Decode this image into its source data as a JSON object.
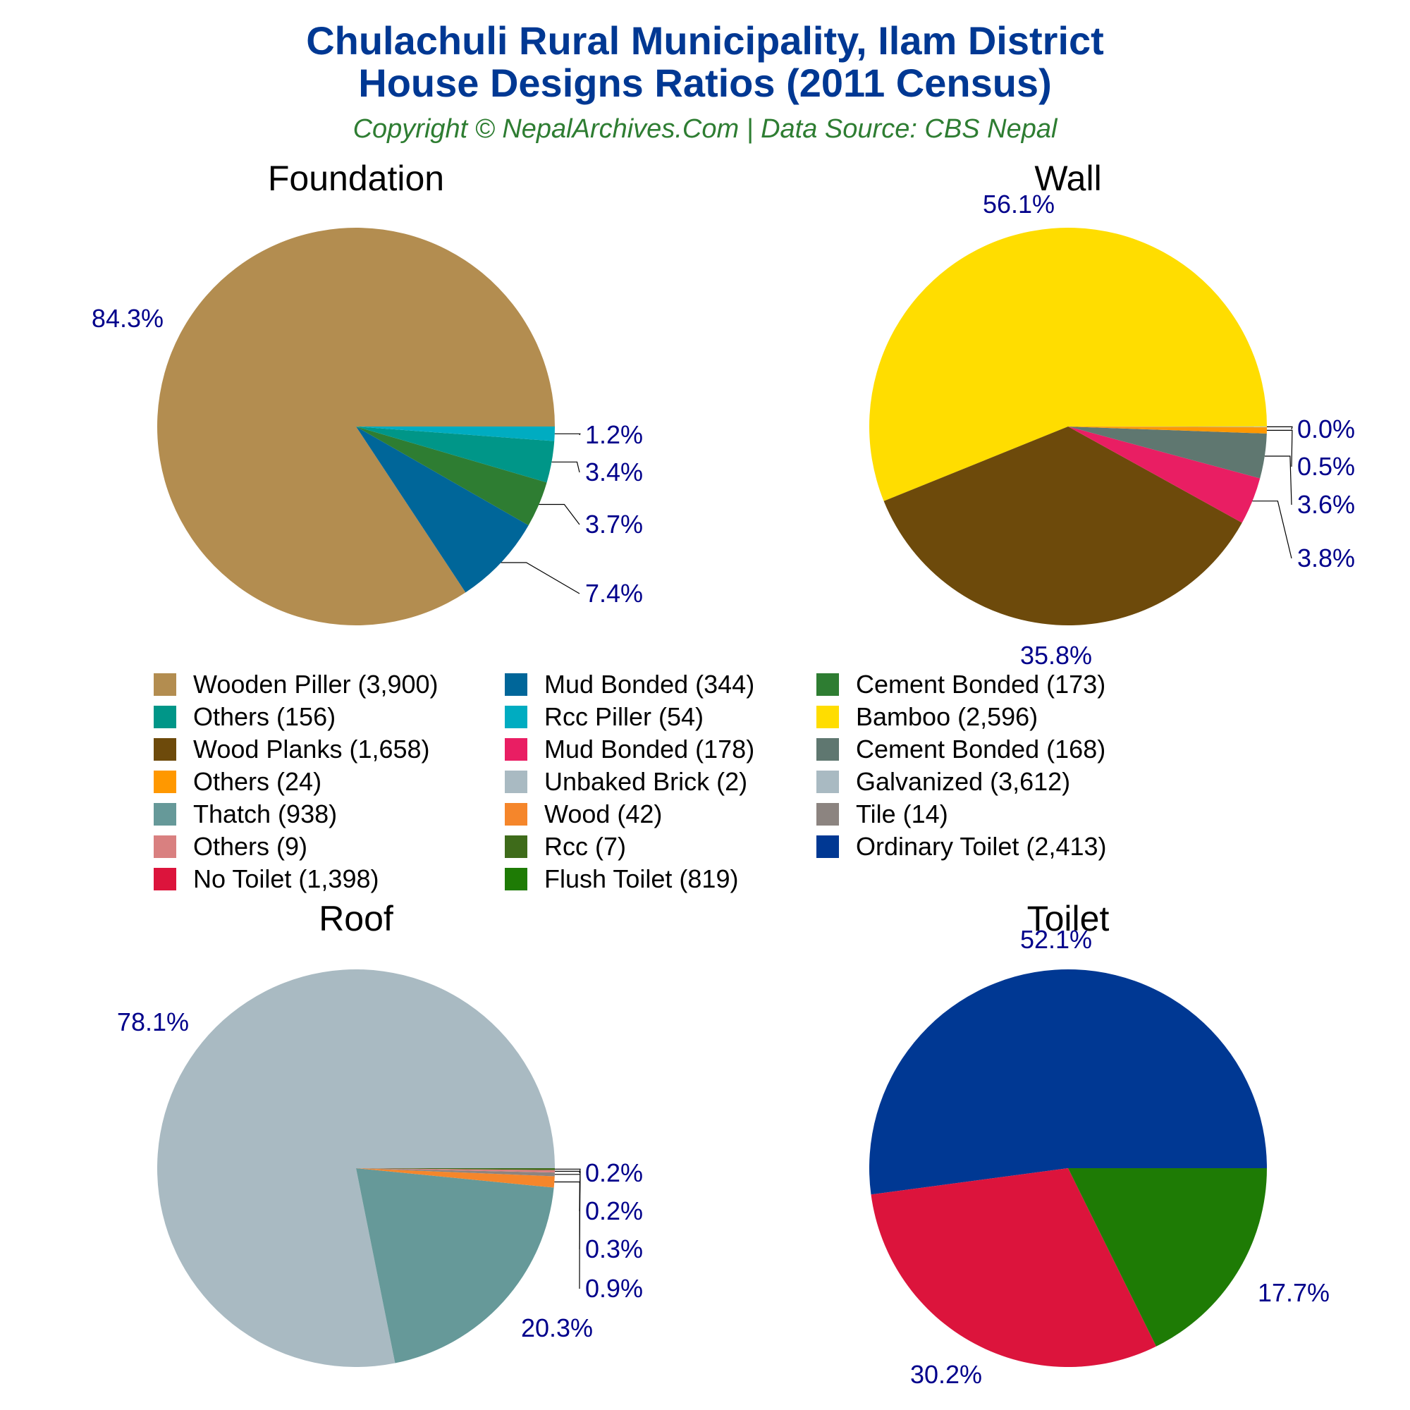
{
  "header": {
    "title_line1": "Chulachuli Rural Municipality, Ilam District",
    "title_line2": "House Designs Ratios (2011 Census)",
    "subtitle": "Copyright © NepalArchives.Com | Data Source: CBS Nepal"
  },
  "chart_data": [
    {
      "type": "pie",
      "title": "Foundation",
      "slices": [
        {
          "label": "Wooden Piller",
          "value": 3900,
          "pct_label": "84.3%",
          "color": "#b38d50"
        },
        {
          "label": "Mud Bonded",
          "value": 344,
          "pct_label": "7.4%",
          "color": "#006699"
        },
        {
          "label": "Cement Bonded",
          "value": 173,
          "pct_label": "3.7%",
          "color": "#2e7d32"
        },
        {
          "label": "Others",
          "value": 156,
          "pct_label": "3.4%",
          "color": "#009688"
        },
        {
          "label": "Rcc Piller",
          "value": 54,
          "pct_label": "1.2%",
          "color": "#00acc1"
        }
      ]
    },
    {
      "type": "pie",
      "title": "Wall",
      "slices": [
        {
          "label": "Bamboo",
          "value": 2596,
          "pct_label": "56.1%",
          "color": "#ffdd00"
        },
        {
          "label": "Wood Planks",
          "value": 1658,
          "pct_label": "35.8%",
          "color": "#6d4a0b"
        },
        {
          "label": "Mud Bonded",
          "value": 178,
          "pct_label": "3.8%",
          "color": "#e91e63"
        },
        {
          "label": "Cement Bonded",
          "value": 168,
          "pct_label": "3.6%",
          "color": "#5f7770"
        },
        {
          "label": "Others",
          "value": 24,
          "pct_label": "0.5%",
          "color": "#ff9800"
        },
        {
          "label": "Unbaked Brick",
          "value": 2,
          "pct_label": "0.0%",
          "color": "#a9bac2"
        }
      ]
    },
    {
      "type": "pie",
      "title": "Roof",
      "slices": [
        {
          "label": "Galvanized",
          "value": 3612,
          "pct_label": "78.1%",
          "color": "#a9bac2"
        },
        {
          "label": "Thatch",
          "value": 938,
          "pct_label": "20.3%",
          "color": "#669999"
        },
        {
          "label": "Wood",
          "value": 42,
          "pct_label": "0.9%",
          "color": "#f5862b"
        },
        {
          "label": "Tile",
          "value": 14,
          "pct_label": "0.3%",
          "color": "#8c8480"
        },
        {
          "label": "Others",
          "value": 9,
          "pct_label": "0.2%",
          "color": "#d98080"
        },
        {
          "label": "Rcc",
          "value": 7,
          "pct_label": "0.2%",
          "color": "#3e6b1a"
        }
      ]
    },
    {
      "type": "pie",
      "title": "Toilet",
      "slices": [
        {
          "label": "Ordinary Toilet",
          "value": 2413,
          "pct_label": "52.1%",
          "color": "#003893"
        },
        {
          "label": "No Toilet",
          "value": 1398,
          "pct_label": "30.2%",
          "color": "#dc143c"
        },
        {
          "label": "Flush Toilet",
          "value": 819,
          "pct_label": "17.7%",
          "color": "#1e7b05"
        }
      ]
    }
  ],
  "legend": {
    "items": [
      {
        "text": "Wooden Piller (3,900)",
        "color": "#b38d50"
      },
      {
        "text": "Mud Bonded (344)",
        "color": "#006699"
      },
      {
        "text": "Cement Bonded (173)",
        "color": "#2e7d32"
      },
      {
        "text": "Others (156)",
        "color": "#009688"
      },
      {
        "text": "Rcc Piller (54)",
        "color": "#00acc1"
      },
      {
        "text": "Bamboo (2,596)",
        "color": "#ffdd00"
      },
      {
        "text": "Wood Planks (1,658)",
        "color": "#6d4a0b"
      },
      {
        "text": "Mud Bonded (178)",
        "color": "#e91e63"
      },
      {
        "text": "Cement Bonded (168)",
        "color": "#5f7770"
      },
      {
        "text": "Others (24)",
        "color": "#ff9800"
      },
      {
        "text": "Unbaked Brick (2)",
        "color": "#a9bac2"
      },
      {
        "text": "Galvanized (3,612)",
        "color": "#a9bac2"
      },
      {
        "text": "Thatch (938)",
        "color": "#669999"
      },
      {
        "text": "Wood (42)",
        "color": "#f5862b"
      },
      {
        "text": "Tile (14)",
        "color": "#8c8480"
      },
      {
        "text": "Others (9)",
        "color": "#d98080"
      },
      {
        "text": "Rcc (7)",
        "color": "#3e6b1a"
      },
      {
        "text": "Ordinary Toilet (2,413)",
        "color": "#003893"
      },
      {
        "text": "No Toilet (1,398)",
        "color": "#dc143c"
      },
      {
        "text": "Flush Toilet (819)",
        "color": "#1e7b05"
      }
    ]
  }
}
